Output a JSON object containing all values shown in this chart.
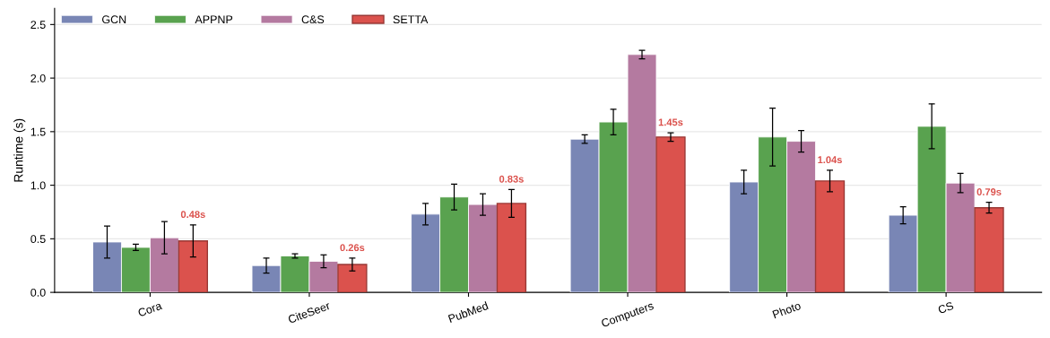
{
  "chart_data": {
    "type": "bar",
    "ylabel": "Runtime (s)",
    "categories": [
      "Cora",
      "CiteSeer",
      "PubMed",
      "Computers",
      "Photo",
      "CS"
    ],
    "series": [
      {
        "name": "GCN",
        "color": "#7986b5",
        "values": [
          0.47,
          0.25,
          0.73,
          1.43,
          1.03,
          0.72
        ],
        "errors": [
          0.15,
          0.07,
          0.1,
          0.04,
          0.11,
          0.08
        ]
      },
      {
        "name": "APPNP",
        "color": "#59a24f",
        "values": [
          0.42,
          0.34,
          0.89,
          1.59,
          1.45,
          1.55
        ],
        "errors": [
          0.03,
          0.02,
          0.12,
          0.12,
          0.27,
          0.21
        ]
      },
      {
        "name": "C&S",
        "color": "#b47aa0",
        "values": [
          0.51,
          0.29,
          0.82,
          2.22,
          1.41,
          1.02
        ],
        "errors": [
          0.15,
          0.06,
          0.1,
          0.04,
          0.1,
          0.09
        ]
      },
      {
        "name": "SETTA",
        "color": "#db524d",
        "values": [
          0.48,
          0.26,
          0.83,
          1.45,
          1.04,
          0.79
        ],
        "errors": [
          0.15,
          0.06,
          0.13,
          0.04,
          0.1,
          0.05
        ],
        "value_labels": [
          "0.48s",
          "0.26s",
          "0.83s",
          "1.45s",
          "1.04s",
          "0.79s"
        ]
      }
    ],
    "ylim": [
      0,
      2.65
    ],
    "yticks": [
      {
        "value": 0,
        "label": "0.0"
      },
      {
        "value": 0.5,
        "label": "0.5"
      },
      {
        "value": 1,
        "label": "1.0"
      },
      {
        "value": 1.5,
        "label": "1.5"
      },
      {
        "value": 2,
        "label": "2.0"
      },
      {
        "value": 2.5,
        "label": "2.5"
      }
    ],
    "grid": "y",
    "legend": "top left"
  }
}
